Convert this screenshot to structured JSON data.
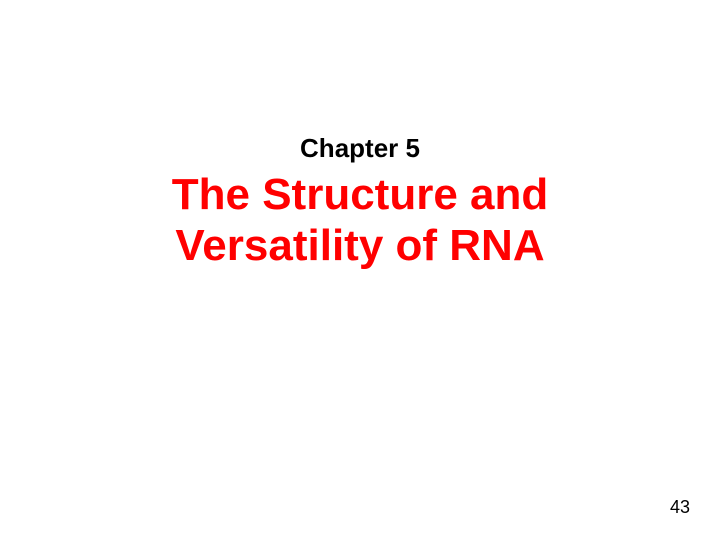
{
  "chapter": {
    "text": "Chapter 5",
    "color": "#000000",
    "fontsize": 26
  },
  "title": {
    "line1": "The Structure and",
    "line2": "Versatility of RNA",
    "color": "#ff0000",
    "fontsize": 44
  },
  "pagenum": {
    "text": "43",
    "color": "#000000",
    "fontsize": 18
  },
  "background_color": "#ffffff"
}
